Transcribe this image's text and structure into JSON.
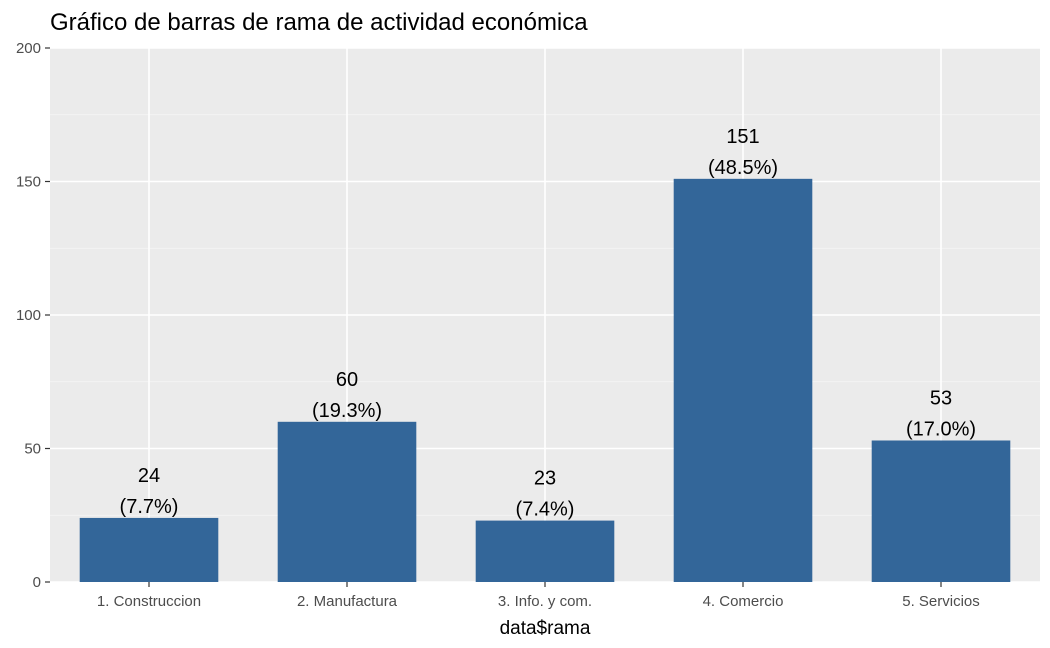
{
  "chart_data": {
    "type": "bar",
    "title": "Gráfico de barras de rama de actividad económica",
    "xlabel": "data$rama",
    "ylabel": "",
    "categories": [
      "1. Construccion",
      "2. Manufactura",
      "3. Info. y com.",
      "4. Comercio",
      "5. Servicios"
    ],
    "values": [
      24,
      60,
      23,
      151,
      53
    ],
    "value_labels": [
      "24",
      "60",
      "23",
      "151",
      "53"
    ],
    "percent_labels": [
      "(7.7%)",
      "(19.3%)",
      "(7.4%)",
      "(48.5%)",
      "(17.0%)"
    ],
    "ylim": [
      0,
      200
    ],
    "yticks": [
      0,
      50,
      100,
      150,
      200
    ],
    "ytick_labels": [
      "0",
      "50",
      "100",
      "150",
      "200"
    ],
    "grid": true,
    "legend": "none",
    "colors": {
      "bar": "#336699",
      "panel": "#ebebeb",
      "grid_major": "#ffffff",
      "grid_minor": "#f5f5f5",
      "tick": "#333333"
    }
  }
}
